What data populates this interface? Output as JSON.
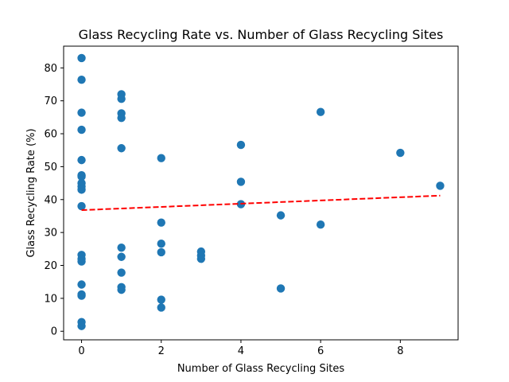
{
  "chart_data": {
    "type": "scatter",
    "title": "Glass Recycling Rate vs. Number of Glass Recycling Sites",
    "xlabel": "Number of Glass Recycling Sites",
    "ylabel": "Glass Recycling Rate (%)",
    "xlim": [
      -0.45,
      9.45
    ],
    "ylim": [
      -2.6,
      86.6
    ],
    "xticks": [
      0,
      2,
      4,
      6,
      8
    ],
    "yticks": [
      0,
      10,
      20,
      30,
      40,
      50,
      60,
      70,
      80
    ],
    "grid": false,
    "points": [
      {
        "x": 0,
        "y": 83.0
      },
      {
        "x": 0,
        "y": 76.4
      },
      {
        "x": 0,
        "y": 66.4
      },
      {
        "x": 0,
        "y": 61.2
      },
      {
        "x": 0,
        "y": 52.0
      },
      {
        "x": 0,
        "y": 47.4
      },
      {
        "x": 0,
        "y": 47.0
      },
      {
        "x": 0,
        "y": 45.0
      },
      {
        "x": 0,
        "y": 44.0
      },
      {
        "x": 0,
        "y": 43.0
      },
      {
        "x": 0,
        "y": 38.0
      },
      {
        "x": 0,
        "y": 23.2
      },
      {
        "x": 0,
        "y": 22.0
      },
      {
        "x": 0,
        "y": 21.2
      },
      {
        "x": 0,
        "y": 14.2
      },
      {
        "x": 0,
        "y": 11.2
      },
      {
        "x": 0,
        "y": 10.8
      },
      {
        "x": 0,
        "y": 2.8
      },
      {
        "x": 0,
        "y": 1.6
      },
      {
        "x": 1,
        "y": 72.0
      },
      {
        "x": 1,
        "y": 70.6
      },
      {
        "x": 1,
        "y": 66.2
      },
      {
        "x": 1,
        "y": 64.8
      },
      {
        "x": 1,
        "y": 55.6
      },
      {
        "x": 1,
        "y": 25.4
      },
      {
        "x": 1,
        "y": 22.6
      },
      {
        "x": 1,
        "y": 17.8
      },
      {
        "x": 1,
        "y": 13.4
      },
      {
        "x": 1,
        "y": 12.6
      },
      {
        "x": 2,
        "y": 52.6
      },
      {
        "x": 2,
        "y": 33.0
      },
      {
        "x": 2,
        "y": 26.6
      },
      {
        "x": 2,
        "y": 24.0
      },
      {
        "x": 2,
        "y": 9.6
      },
      {
        "x": 2,
        "y": 7.2
      },
      {
        "x": 3,
        "y": 24.2
      },
      {
        "x": 3,
        "y": 23.0
      },
      {
        "x": 3,
        "y": 22.0
      },
      {
        "x": 4,
        "y": 56.6
      },
      {
        "x": 4,
        "y": 45.4
      },
      {
        "x": 4,
        "y": 38.6
      },
      {
        "x": 5,
        "y": 35.2
      },
      {
        "x": 5,
        "y": 13.0
      },
      {
        "x": 6,
        "y": 66.6
      },
      {
        "x": 6,
        "y": 32.4
      },
      {
        "x": 8,
        "y": 54.2
      },
      {
        "x": 9,
        "y": 44.2
      }
    ],
    "trendline": {
      "x": [
        0,
        9
      ],
      "y": [
        36.8,
        41.2
      ],
      "style": "dashed"
    },
    "colors": {
      "points": "#1f77b4",
      "trendline": "#ff0000",
      "axes": "#000000"
    }
  }
}
